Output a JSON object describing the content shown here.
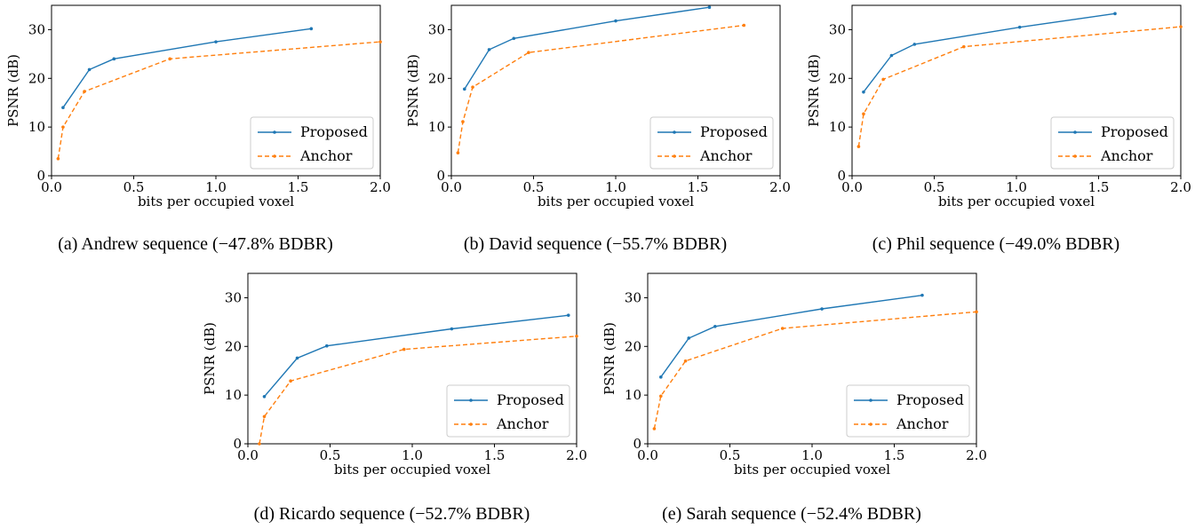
{
  "chart_data": [
    {
      "type": "line",
      "caption": "(a) Andrew sequence (−47.8% BDBR)",
      "xlabel": "bits per occupied voxel",
      "ylabel": "PSNR (dB)",
      "xlim": [
        0.0,
        2.0
      ],
      "ylim": [
        0,
        35
      ],
      "xticks": [
        "0.0",
        "0.5",
        "1.0",
        "1.5",
        "2.0"
      ],
      "yticks": [
        "0",
        "10",
        "20",
        "30"
      ],
      "legend": "lower-right",
      "grid": false,
      "series": [
        {
          "name": "Proposed",
          "color": "#1f77b4",
          "style": "solid",
          "x": [
            0.07,
            0.23,
            0.38,
            1.0,
            1.58
          ],
          "y": [
            14.0,
            21.8,
            24.0,
            27.5,
            30.2
          ]
        },
        {
          "name": "Anchor",
          "color": "#ff7f0e",
          "style": "dashed",
          "x": [
            0.04,
            0.07,
            0.2,
            0.72,
            2.0
          ],
          "y": [
            3.5,
            10.0,
            17.3,
            24.0,
            27.5
          ]
        }
      ]
    },
    {
      "type": "line",
      "caption": "(b) David sequence (−55.7% BDBR)",
      "xlabel": "bits per occupied voxel",
      "ylabel": "PSNR (dB)",
      "xlim": [
        0.0,
        2.0
      ],
      "ylim": [
        0,
        35
      ],
      "xticks": [
        "0.0",
        "0.5",
        "1.0",
        "1.5",
        "2.0"
      ],
      "yticks": [
        "0",
        "10",
        "20",
        "30"
      ],
      "legend": "lower-right",
      "grid": false,
      "series": [
        {
          "name": "Proposed",
          "color": "#1f77b4",
          "style": "solid",
          "x": [
            0.08,
            0.23,
            0.38,
            1.0,
            1.57
          ],
          "y": [
            17.8,
            25.9,
            28.2,
            31.8,
            34.6
          ]
        },
        {
          "name": "Anchor",
          "color": "#ff7f0e",
          "style": "dashed",
          "x": [
            0.04,
            0.07,
            0.13,
            0.47,
            1.78
          ],
          "y": [
            4.7,
            11.1,
            18.2,
            25.3,
            30.9
          ]
        }
      ]
    },
    {
      "type": "line",
      "caption": "(c) Phil sequence (−49.0% BDBR)",
      "xlabel": "bits per occupied voxel",
      "ylabel": "PSNR (dB)",
      "xlim": [
        0.0,
        2.0
      ],
      "ylim": [
        0,
        35
      ],
      "xticks": [
        "0.0",
        "0.5",
        "1.0",
        "1.5",
        "2.0"
      ],
      "yticks": [
        "0",
        "10",
        "20",
        "30"
      ],
      "legend": "lower-right",
      "grid": false,
      "series": [
        {
          "name": "Proposed",
          "color": "#1f77b4",
          "style": "solid",
          "x": [
            0.07,
            0.24,
            0.38,
            1.02,
            1.6
          ],
          "y": [
            17.2,
            24.7,
            27.0,
            30.5,
            33.3
          ]
        },
        {
          "name": "Anchor",
          "color": "#ff7f0e",
          "style": "dashed",
          "x": [
            0.04,
            0.07,
            0.19,
            0.68,
            2.0
          ],
          "y": [
            6.0,
            12.7,
            19.8,
            26.5,
            30.6
          ]
        }
      ]
    },
    {
      "type": "line",
      "caption": "(d) Ricardo sequence (−52.7% BDBR)",
      "xlabel": "bits per occupied voxel",
      "ylabel": "PSNR (dB)",
      "xlim": [
        0.0,
        2.0
      ],
      "ylim": [
        0,
        35
      ],
      "xticks": [
        "0.0",
        "0.5",
        "1.0",
        "1.5",
        "2.0"
      ],
      "yticks": [
        "0",
        "10",
        "20",
        "30"
      ],
      "legend": "lower-right",
      "grid": false,
      "series": [
        {
          "name": "Proposed",
          "color": "#1f77b4",
          "style": "solid",
          "x": [
            0.1,
            0.3,
            0.48,
            1.24,
            1.95
          ],
          "y": [
            9.7,
            17.6,
            20.1,
            23.6,
            26.4
          ]
        },
        {
          "name": "Anchor",
          "color": "#ff7f0e",
          "style": "dashed",
          "x": [
            0.07,
            0.1,
            0.26,
            0.95,
            2.0
          ],
          "y": [
            0.0,
            5.6,
            12.9,
            19.4,
            22.1
          ]
        }
      ]
    },
    {
      "type": "line",
      "caption": "(e) Sarah sequence (−52.4% BDBR)",
      "xlabel": "bits per occupied voxel",
      "ylabel": "PSNR (dB)",
      "xlim": [
        0.0,
        2.0
      ],
      "ylim": [
        0,
        35
      ],
      "xticks": [
        "0.0",
        "0.5",
        "1.0",
        "1.5",
        "2.0"
      ],
      "yticks": [
        "0",
        "10",
        "20",
        "30"
      ],
      "legend": "lower-right",
      "grid": false,
      "series": [
        {
          "name": "Proposed",
          "color": "#1f77b4",
          "style": "solid",
          "x": [
            0.08,
            0.25,
            0.41,
            1.06,
            1.67
          ],
          "y": [
            13.7,
            21.7,
            24.1,
            27.7,
            30.5
          ]
        },
        {
          "name": "Anchor",
          "color": "#ff7f0e",
          "style": "dashed",
          "x": [
            0.04,
            0.08,
            0.23,
            0.82,
            2.0
          ],
          "y": [
            3.1,
            9.8,
            17.0,
            23.7,
            27.1
          ]
        }
      ]
    }
  ]
}
